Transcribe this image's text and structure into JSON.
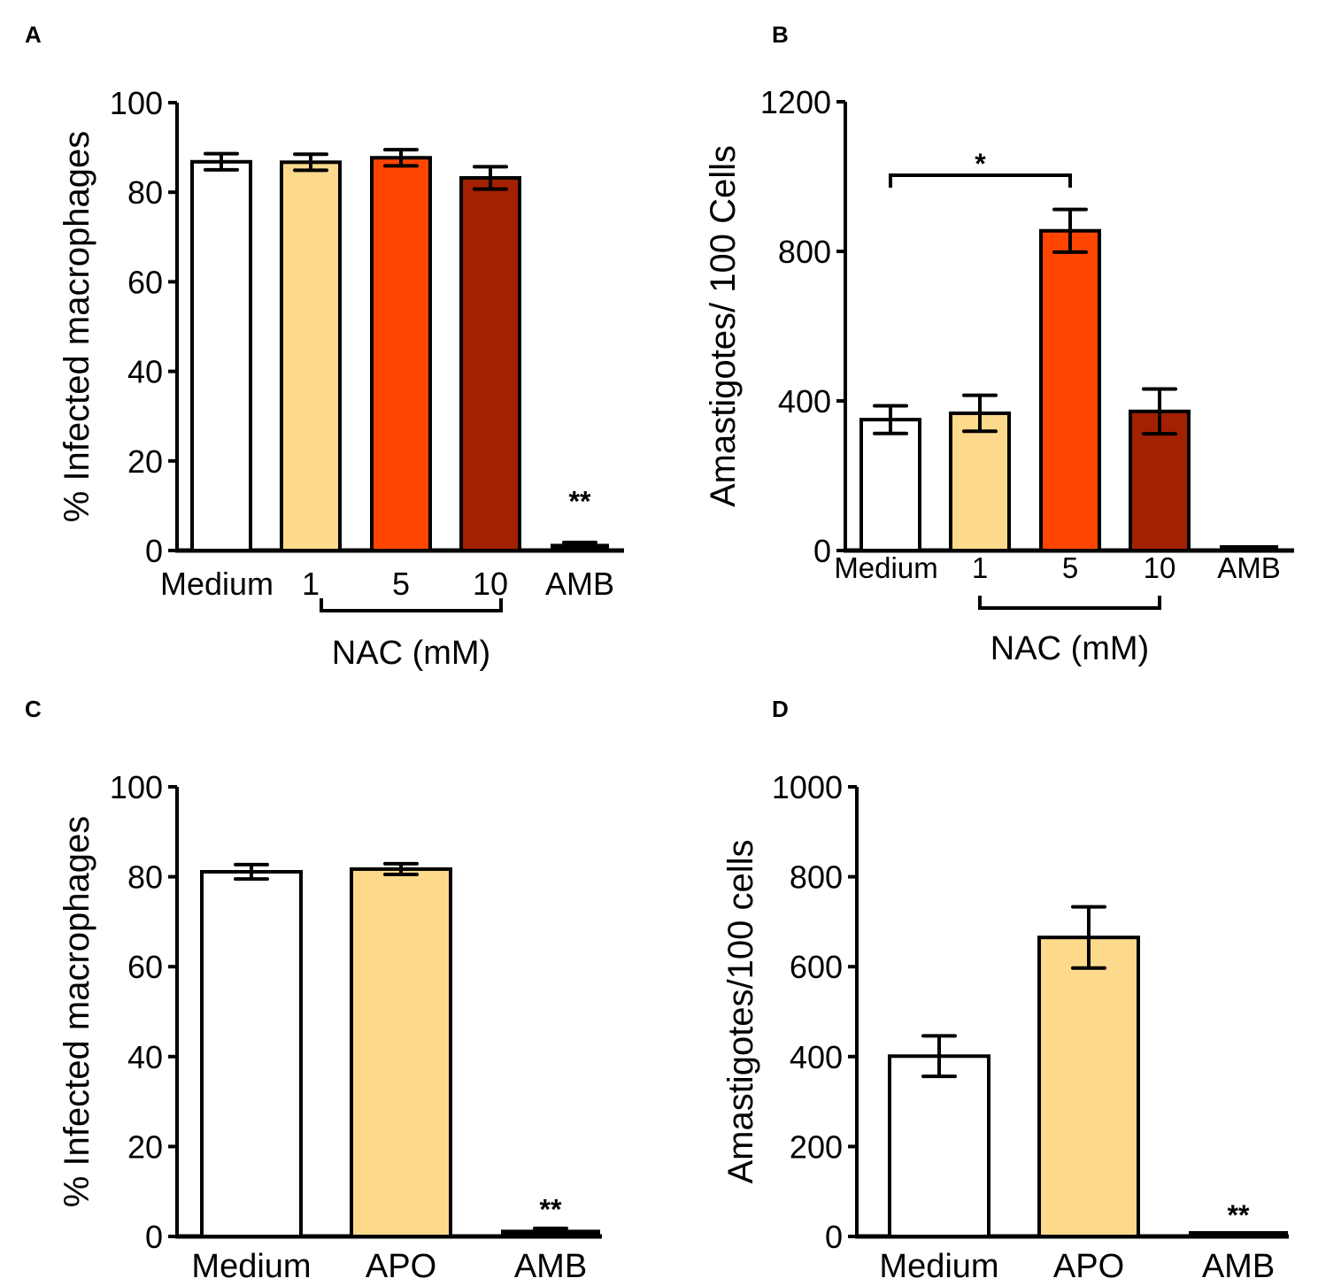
{
  "colors": {
    "medium": "#ffffff",
    "c1": "#fdd98c",
    "c5": "#ff4500",
    "c10": "#a32000",
    "amb": "#000000",
    "apo": "#fdd98c"
  },
  "chart_data": [
    {
      "panel": "A",
      "type": "bar",
      "ylabel": "% Infected macrophages",
      "ylim": [
        0,
        100
      ],
      "yticks": [
        0,
        20,
        40,
        60,
        80,
        100
      ],
      "categories": [
        "Medium",
        "1",
        "5",
        "10",
        "AMB"
      ],
      "values": [
        86.8,
        86.7,
        87.7,
        83.2,
        1.5
      ],
      "errors": [
        1.8,
        1.8,
        1.8,
        2.5,
        0.3
      ],
      "fills": [
        "medium",
        "c1",
        "c5",
        "c10",
        "amb"
      ],
      "group_label": "NAC (mM)",
      "group_span": [
        1,
        3
      ],
      "annotations": [
        {
          "category_index": 4,
          "text": "**"
        }
      ]
    },
    {
      "panel": "B",
      "type": "bar",
      "ylabel": "Amastigotes/ 100 Cells",
      "ylim": [
        0,
        1200
      ],
      "yticks": [
        0,
        400,
        800,
        1200
      ],
      "categories": [
        "Medium",
        "1",
        "5",
        "10",
        "AMB"
      ],
      "values": [
        350,
        367,
        855,
        372,
        0
      ],
      "errors": [
        37,
        48,
        57,
        60,
        0
      ],
      "fills": [
        "medium",
        "c1",
        "c5",
        "c10",
        "amb"
      ],
      "group_label": "NAC (mM)",
      "group_span": [
        1,
        3
      ],
      "significance": {
        "from": 0,
        "to": 2,
        "text": "*"
      }
    },
    {
      "panel": "C",
      "type": "bar",
      "ylabel": "% Infected macrophages",
      "ylim": [
        0,
        100
      ],
      "yticks": [
        0,
        20,
        40,
        60,
        80,
        100
      ],
      "categories": [
        "Medium",
        "APO",
        "AMB"
      ],
      "values": [
        81.1,
        81.7,
        1.5
      ],
      "errors": [
        1.6,
        1.2,
        0.3
      ],
      "fills": [
        "medium",
        "apo",
        "amb"
      ],
      "annotations": [
        {
          "category_index": 2,
          "text": "**"
        }
      ]
    },
    {
      "panel": "D",
      "type": "bar",
      "ylabel": "Amastigotes/100 cells",
      "ylim": [
        0,
        1000
      ],
      "yticks": [
        0,
        200,
        400,
        600,
        800,
        1000
      ],
      "categories": [
        "Medium",
        "APO",
        "AMB"
      ],
      "values": [
        401,
        665,
        2
      ],
      "errors": [
        45,
        68,
        0
      ],
      "fills": [
        "medium",
        "apo",
        "amb"
      ],
      "annotations": [
        {
          "category_index": 2,
          "text": "**"
        }
      ]
    }
  ]
}
